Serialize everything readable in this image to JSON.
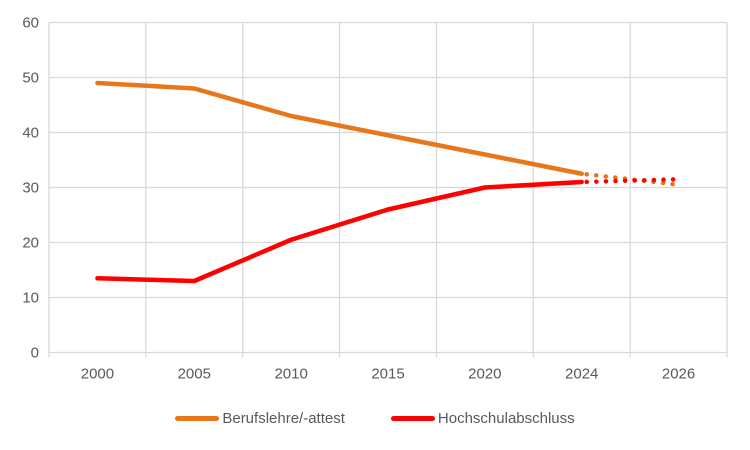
{
  "chart_data": {
    "type": "line",
    "title": "",
    "categories": [
      "2000",
      "2005",
      "2010",
      "2015",
      "2020",
      "2024",
      "2026"
    ],
    "x_tick_labels": [
      "2000",
      "2005",
      "2010",
      "2015",
      "2020",
      "2024",
      "2026"
    ],
    "y_axis": {
      "min": 0,
      "max": 60,
      "step": 10,
      "tick_labels": [
        "0",
        "10",
        "20",
        "30",
        "40",
        "50",
        "60"
      ]
    },
    "grid": {
      "horizontal": true,
      "vertical": true,
      "color": "#d9d9d9"
    },
    "axis_text_color": "#595959",
    "background_color": "#ffffff",
    "series": [
      {
        "name": "Berufslehre/-attest",
        "color": "#e8761b",
        "solid_values": [
          49,
          48,
          43,
          39.5,
          36,
          32.5,
          null
        ],
        "dotted_values": [
          null,
          null,
          null,
          null,
          null,
          32.5,
          30.5
        ]
      },
      {
        "name": "Hochschulabschluss",
        "color": "#ff0000",
        "solid_values": [
          13.5,
          13,
          20.5,
          26,
          30,
          31,
          null
        ],
        "dotted_values": [
          null,
          null,
          null,
          null,
          null,
          31,
          31.5
        ]
      }
    ],
    "legend_position": "bottom"
  }
}
